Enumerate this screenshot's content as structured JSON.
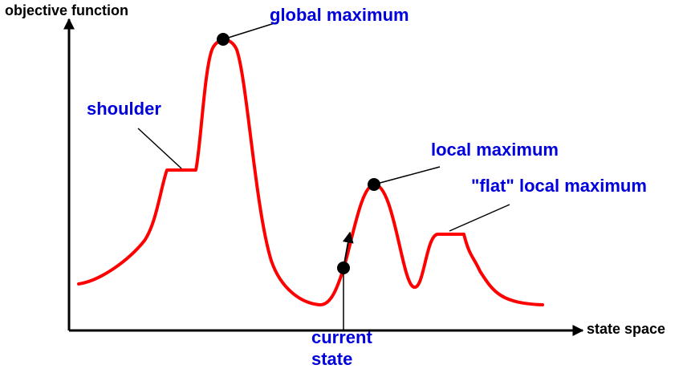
{
  "axes": {
    "y_label": "objective function",
    "x_label": "state space"
  },
  "labels": {
    "global_maximum": "global maximum",
    "shoulder": "shoulder",
    "local_maximum": "local maximum",
    "flat_local_maximum": "\"flat\" local maximum",
    "current_state_line1": "current",
    "current_state_line2": "state"
  },
  "colors": {
    "curve": "#ff0000",
    "label": "#0000dd",
    "axis": "#000000",
    "point": "#000000"
  }
}
